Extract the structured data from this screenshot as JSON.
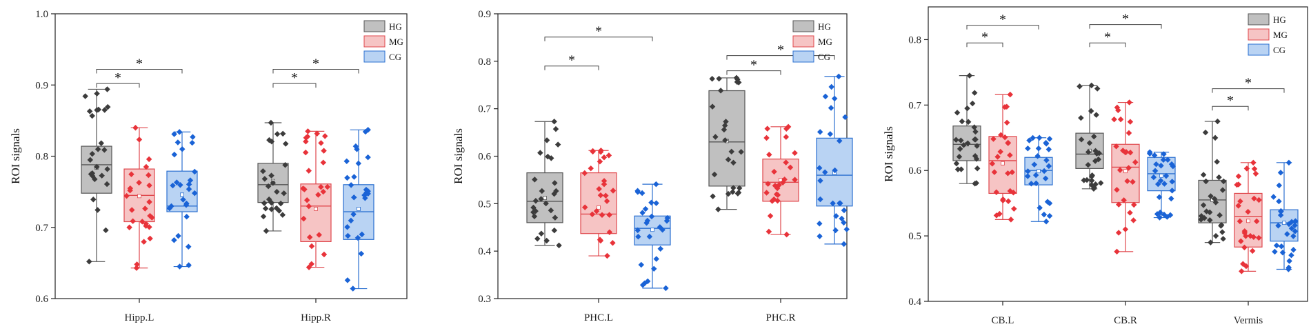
{
  "groups": [
    {
      "name": "HG",
      "fill": "#c0c0c0",
      "stroke": "#555555",
      "dot": "#3c3c3c"
    },
    {
      "name": "MG",
      "fill": "#f6c4c4",
      "stroke": "#e0474c",
      "dot": "#e8333a"
    },
    {
      "name": "CG",
      "fill": "#b9d3f3",
      "stroke": "#2a6fd0",
      "dot": "#1a63d6"
    }
  ],
  "chart_data": [
    {
      "type": "box",
      "ylabel": "ROI signals",
      "ylim": [
        0.6,
        1.0
      ],
      "yticks": [
        "0.6",
        "0.7",
        "0.8",
        "0.9",
        "1.0"
      ],
      "legend": "top-right",
      "categories": [
        {
          "label": "Hipp.L",
          "boxes": [
            {
              "min": 0.652,
              "q1": 0.748,
              "median": 0.788,
              "q3": 0.814,
              "max": 0.894,
              "mean": 0.784
            },
            {
              "min": 0.643,
              "q1": 0.708,
              "median": 0.745,
              "q3": 0.782,
              "max": 0.84,
              "mean": 0.744
            },
            {
              "min": 0.645,
              "q1": 0.722,
              "median": 0.73,
              "q3": 0.779,
              "max": 0.834,
              "mean": 0.746
            }
          ]
        },
        {
          "label": "Hipp.R",
          "boxes": [
            {
              "min": 0.695,
              "q1": 0.735,
              "median": 0.76,
              "q3": 0.79,
              "max": 0.847,
              "mean": 0.765
            },
            {
              "min": 0.644,
              "q1": 0.68,
              "median": 0.73,
              "q3": 0.761,
              "max": 0.835,
              "mean": 0.726
            },
            {
              "min": 0.614,
              "q1": 0.683,
              "median": 0.722,
              "q3": 0.76,
              "max": 0.837,
              "mean": 0.726
            }
          ]
        }
      ],
      "significance": [
        {
          "category": 0,
          "from": 0,
          "to": 1,
          "y": 0.902,
          "label": "*"
        },
        {
          "category": 0,
          "from": 0,
          "to": 2,
          "y": 0.922,
          "label": "*"
        },
        {
          "category": 1,
          "from": 0,
          "to": 1,
          "y": 0.902,
          "label": "*"
        },
        {
          "category": 1,
          "from": 0,
          "to": 2,
          "y": 0.922,
          "label": "*"
        }
      ]
    },
    {
      "type": "box",
      "ylabel": "ROI signals",
      "ylim": [
        0.3,
        0.9
      ],
      "yticks": [
        "0.3",
        "0.4",
        "0.5",
        "0.6",
        "0.7",
        "0.8",
        "0.9"
      ],
      "legend": "top-right",
      "categories": [
        {
          "label": "PHC.L",
          "boxes": [
            {
              "min": 0.412,
              "q1": 0.46,
              "median": 0.505,
              "q3": 0.565,
              "max": 0.673,
              "mean": 0.512
            },
            {
              "min": 0.39,
              "q1": 0.437,
              "median": 0.478,
              "q3": 0.565,
              "max": 0.612,
              "mean": 0.492
            },
            {
              "min": 0.322,
              "q1": 0.413,
              "median": 0.448,
              "q3": 0.474,
              "max": 0.541,
              "mean": 0.445
            }
          ]
        },
        {
          "label": "PHC.R",
          "boxes": [
            {
              "min": 0.488,
              "q1": 0.537,
              "median": 0.63,
              "q3": 0.738,
              "max": 0.765,
              "mean": 0.632
            },
            {
              "min": 0.435,
              "q1": 0.505,
              "median": 0.545,
              "q3": 0.594,
              "max": 0.662,
              "mean": 0.55
            },
            {
              "min": 0.415,
              "q1": 0.495,
              "median": 0.56,
              "q3": 0.638,
              "max": 0.768,
              "mean": 0.565
            }
          ]
        }
      ],
      "significance": [
        {
          "category": 0,
          "from": 0,
          "to": 1,
          "y": 0.79,
          "label": "*"
        },
        {
          "category": 0,
          "from": 0,
          "to": 2,
          "y": 0.851,
          "label": "*"
        },
        {
          "category": 1,
          "from": 0,
          "to": 1,
          "y": 0.78,
          "label": "*"
        },
        {
          "category": 1,
          "from": 0,
          "to": 2,
          "y": 0.812,
          "label": "*"
        }
      ]
    },
    {
      "type": "box",
      "ylabel": "ROI signals",
      "ylim": [
        0.4,
        0.85
      ],
      "yticks": [
        "0.4",
        "0.5",
        "0.6",
        "0.7",
        "0.8"
      ],
      "legend": "top-right",
      "categories": [
        {
          "label": "CB.L",
          "boxes": [
            {
              "min": 0.58,
              "q1": 0.615,
              "median": 0.64,
              "q3": 0.668,
              "max": 0.745,
              "mean": 0.64
            },
            {
              "min": 0.525,
              "q1": 0.565,
              "median": 0.615,
              "q3": 0.652,
              "max": 0.716,
              "mean": 0.611
            },
            {
              "min": 0.522,
              "q1": 0.578,
              "median": 0.6,
              "q3": 0.62,
              "max": 0.65,
              "mean": 0.599
            }
          ]
        },
        {
          "label": "CB.R",
          "boxes": [
            {
              "min": 0.572,
              "q1": 0.603,
              "median": 0.625,
              "q3": 0.657,
              "max": 0.73,
              "mean": 0.63
            },
            {
              "min": 0.476,
              "q1": 0.551,
              "median": 0.605,
              "q3": 0.64,
              "max": 0.704,
              "mean": 0.599
            },
            {
              "min": 0.528,
              "q1": 0.569,
              "median": 0.595,
              "q3": 0.62,
              "max": 0.628,
              "mean": 0.592
            }
          ]
        },
        {
          "label": "Vermis",
          "boxes": [
            {
              "min": 0.49,
              "q1": 0.52,
              "median": 0.555,
              "q3": 0.585,
              "max": 0.675,
              "mean": 0.555
            },
            {
              "min": 0.446,
              "q1": 0.483,
              "median": 0.53,
              "q3": 0.565,
              "max": 0.612,
              "mean": 0.523
            },
            {
              "min": 0.449,
              "q1": 0.492,
              "median": 0.52,
              "q3": 0.54,
              "max": 0.612,
              "mean": 0.52
            }
          ]
        }
      ],
      "significance": [
        {
          "category": 0,
          "from": 0,
          "to": 1,
          "y": 0.795,
          "label": "*"
        },
        {
          "category": 0,
          "from": 0,
          "to": 2,
          "y": 0.822,
          "label": "*"
        },
        {
          "category": 1,
          "from": 0,
          "to": 1,
          "y": 0.795,
          "label": "*"
        },
        {
          "category": 1,
          "from": 0,
          "to": 2,
          "y": 0.823,
          "label": "*"
        },
        {
          "category": 2,
          "from": 0,
          "to": 1,
          "y": 0.698,
          "label": "*"
        },
        {
          "category": 2,
          "from": 0,
          "to": 2,
          "y": 0.725,
          "label": "*"
        }
      ]
    }
  ]
}
